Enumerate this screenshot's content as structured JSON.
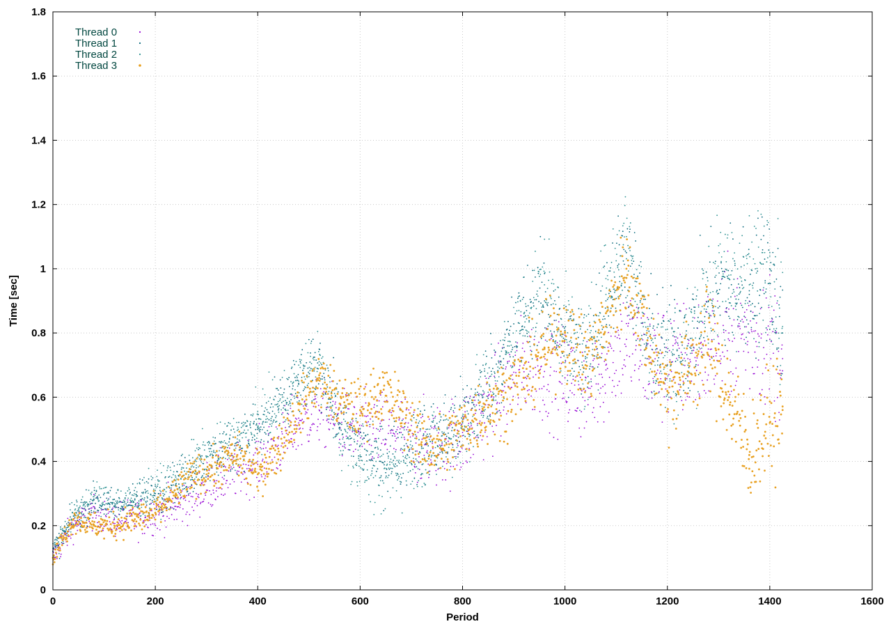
{
  "chart_data": {
    "type": "scatter",
    "title": "",
    "xlabel": "Period",
    "ylabel": "Time [sec]",
    "xlim": [
      0,
      1600
    ],
    "ylim": [
      0,
      1.8
    ],
    "xticks": [
      "0",
      "200",
      "400",
      "600",
      "800",
      "1000",
      "1200",
      "1400",
      "1600"
    ],
    "yticks": [
      "0",
      "0.2",
      "0.4",
      "0.6",
      "0.8",
      "1",
      "1.2",
      "1.4",
      "1.6",
      "1.8"
    ],
    "grid": true,
    "legend_position": "top-left",
    "series": [
      {
        "name": "Thread 0",
        "color": "#9400d3",
        "x": [
          0,
          40,
          80,
          120,
          160,
          200,
          240,
          280,
          320,
          360,
          400,
          440,
          480,
          520,
          560,
          600,
          640,
          680,
          720,
          760,
          800,
          840,
          880,
          920,
          960,
          1000,
          1040,
          1080,
          1120,
          1160,
          1200,
          1240,
          1280,
          1320,
          1360,
          1400,
          1425
        ],
        "y": [
          0.1,
          0.2,
          0.24,
          0.22,
          0.22,
          0.24,
          0.26,
          0.3,
          0.34,
          0.37,
          0.4,
          0.45,
          0.52,
          0.56,
          0.52,
          0.49,
          0.5,
          0.49,
          0.45,
          0.45,
          0.48,
          0.55,
          0.62,
          0.7,
          0.68,
          0.66,
          0.62,
          0.7,
          0.78,
          0.72,
          0.7,
          0.72,
          0.75,
          0.8,
          0.8,
          0.78,
          0.72
        ]
      },
      {
        "name": "Thread 1",
        "color": "#006478",
        "x": [
          0,
          40,
          80,
          120,
          160,
          200,
          240,
          280,
          320,
          360,
          400,
          440,
          480,
          520,
          560,
          600,
          640,
          680,
          720,
          760,
          800,
          840,
          880,
          920,
          960,
          1000,
          1040,
          1080,
          1120,
          1160,
          1200,
          1240,
          1280,
          1320,
          1360,
          1400,
          1425
        ],
        "y": [
          0.12,
          0.22,
          0.28,
          0.26,
          0.28,
          0.3,
          0.33,
          0.38,
          0.42,
          0.46,
          0.5,
          0.56,
          0.64,
          0.7,
          0.52,
          0.45,
          0.4,
          0.44,
          0.46,
          0.48,
          0.52,
          0.62,
          0.72,
          0.85,
          0.9,
          0.78,
          0.72,
          0.9,
          1.05,
          0.8,
          0.74,
          0.78,
          0.9,
          0.94,
          0.92,
          1.0,
          0.8
        ]
      },
      {
        "name": "Thread 2",
        "color": "#2a9090",
        "x": [
          0,
          40,
          80,
          120,
          160,
          200,
          240,
          280,
          320,
          360,
          400,
          440,
          480,
          520,
          560,
          600,
          640,
          680,
          720,
          760,
          800,
          840,
          880,
          920,
          960,
          1000,
          1040,
          1080,
          1120,
          1160,
          1200,
          1240,
          1280,
          1320,
          1360,
          1400,
          1425
        ],
        "y": [
          0.12,
          0.23,
          0.29,
          0.27,
          0.28,
          0.31,
          0.34,
          0.4,
          0.43,
          0.47,
          0.51,
          0.57,
          0.65,
          0.7,
          0.5,
          0.42,
          0.34,
          0.4,
          0.44,
          0.46,
          0.5,
          0.6,
          0.7,
          0.86,
          0.95,
          0.8,
          0.7,
          0.92,
          1.1,
          0.76,
          0.7,
          0.76,
          0.92,
          0.98,
          0.95,
          1.05,
          0.82
        ]
      },
      {
        "name": "Thread 3",
        "color": "#e8a020",
        "x": [
          0,
          40,
          80,
          120,
          160,
          200,
          240,
          280,
          320,
          360,
          400,
          440,
          480,
          520,
          560,
          600,
          640,
          680,
          720,
          760,
          800,
          840,
          880,
          920,
          960,
          1000,
          1040,
          1080,
          1120,
          1160,
          1200,
          1240,
          1280,
          1320,
          1360,
          1400,
          1425
        ],
        "y": [
          0.1,
          0.22,
          0.2,
          0.2,
          0.22,
          0.24,
          0.3,
          0.36,
          0.38,
          0.42,
          0.36,
          0.44,
          0.56,
          0.66,
          0.58,
          0.56,
          0.62,
          0.56,
          0.46,
          0.44,
          0.5,
          0.56,
          0.6,
          0.66,
          0.75,
          0.8,
          0.7,
          0.82,
          1.0,
          0.8,
          0.62,
          0.68,
          0.78,
          0.6,
          0.42,
          0.52,
          0.56
        ]
      }
    ]
  }
}
